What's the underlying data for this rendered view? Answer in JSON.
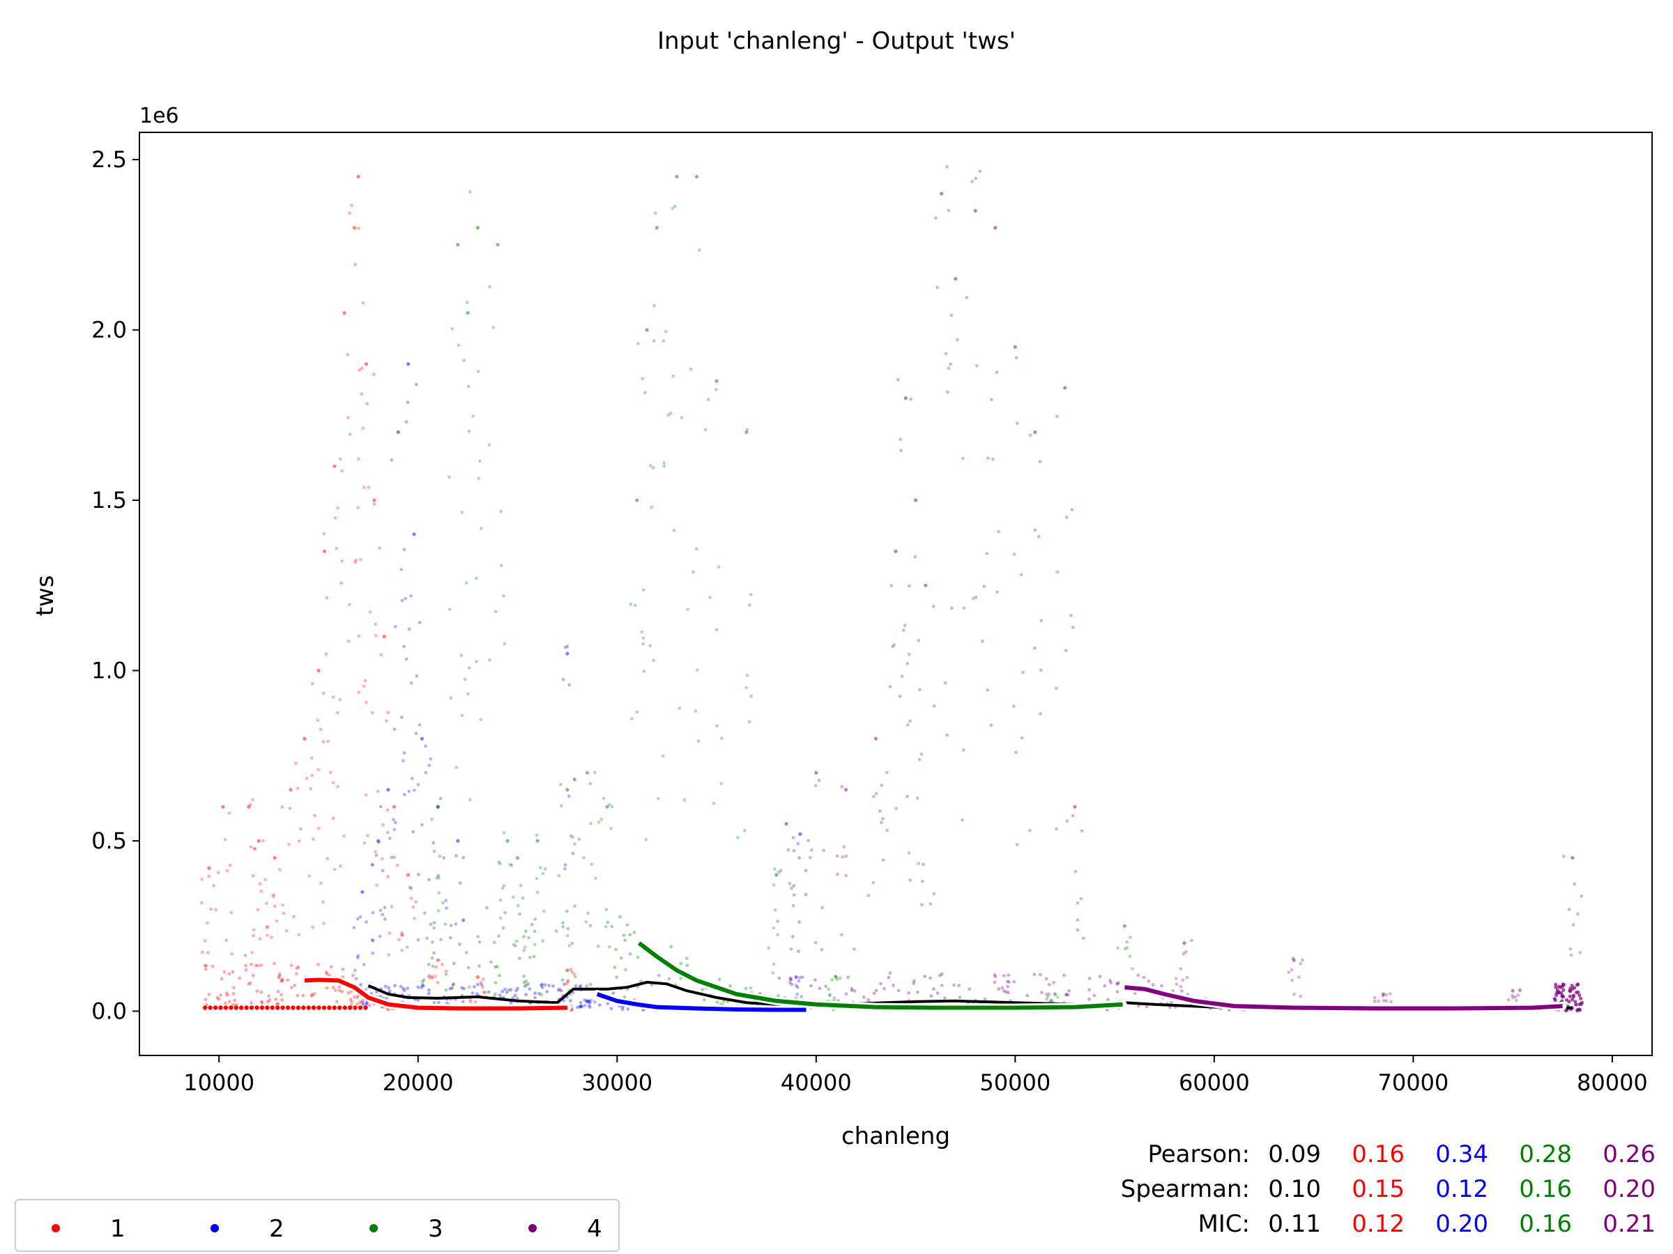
{
  "chart_data": {
    "type": "scatter",
    "title": "Input 'chanleng' - Output 'tws'",
    "xlabel": "chanleng",
    "ylabel": "tws",
    "y_multiplier": "1e6",
    "xlim": [
      6000,
      82000
    ],
    "ylim": [
      -0.13,
      2.58
    ],
    "xticks": [
      10000,
      20000,
      30000,
      40000,
      50000,
      60000,
      70000,
      80000
    ],
    "xtick_labels": [
      "10000",
      "20000",
      "30000",
      "40000",
      "50000",
      "60000",
      "70000",
      "80000"
    ],
    "yticks": [
      0.0,
      0.5,
      1.0,
      1.5,
      2.0,
      2.5
    ],
    "ytick_labels": [
      "0.0",
      "0.5",
      "1.0",
      "1.5",
      "2.0",
      "2.5"
    ],
    "grid": false,
    "legend_position": "bottom-left",
    "series": [
      {
        "name": "1",
        "color": "#ff0000",
        "x_range": [
          9300,
          27800
        ],
        "scatter_samples": [
          [
            9500,
            0.42
          ],
          [
            10200,
            0.6
          ],
          [
            11500,
            0.6
          ],
          [
            12000,
            0.5
          ],
          [
            12800,
            0.45
          ],
          [
            13600,
            0.65
          ],
          [
            14300,
            0.8
          ],
          [
            15000,
            1.0
          ],
          [
            15300,
            1.35
          ],
          [
            15800,
            1.6
          ],
          [
            16300,
            2.05
          ],
          [
            16800,
            2.3
          ],
          [
            17000,
            2.45
          ],
          [
            17400,
            1.9
          ],
          [
            17800,
            1.5
          ],
          [
            18300,
            1.1
          ],
          [
            18800,
            0.6
          ],
          [
            19500,
            0.4
          ],
          [
            21000,
            0.15
          ],
          [
            23000,
            0.1
          ],
          [
            27500,
            0.12
          ]
        ],
        "trend_x": [
          14300,
          15000,
          16000,
          16800,
          17500,
          18500,
          20000,
          22000,
          25000,
          27500
        ],
        "trend_y": [
          0.09,
          0.092,
          0.09,
          0.07,
          0.04,
          0.02,
          0.01,
          0.008,
          0.008,
          0.01
        ]
      },
      {
        "name": "2",
        "color": "#0000ff",
        "x_range": [
          17000,
          39500
        ],
        "scatter_samples": [
          [
            17200,
            0.35
          ],
          [
            18000,
            0.5
          ],
          [
            18500,
            0.65
          ],
          [
            19000,
            1.7
          ],
          [
            19500,
            1.9
          ],
          [
            19800,
            1.4
          ],
          [
            20200,
            0.8
          ],
          [
            21000,
            0.6
          ],
          [
            22000,
            0.5
          ],
          [
            27500,
            1.05
          ],
          [
            28500,
            0.03
          ],
          [
            39000,
            0.1
          ],
          [
            39200,
            0.52
          ]
        ],
        "trend_x": [
          29000,
          30000,
          31000,
          32000,
          34000,
          36000,
          38000,
          39500
        ],
        "trend_y": [
          0.05,
          0.03,
          0.02,
          0.012,
          0.008,
          0.005,
          0.004,
          0.004
        ]
      },
      {
        "name": "3",
        "color": "#008000",
        "x_range": [
          20000,
          55700
        ],
        "scatter_samples": [
          [
            21000,
            0.6
          ],
          [
            22000,
            2.25
          ],
          [
            22500,
            2.05
          ],
          [
            23000,
            2.3
          ],
          [
            24000,
            2.25
          ],
          [
            24500,
            0.5
          ],
          [
            25000,
            0.45
          ],
          [
            26000,
            0.5
          ],
          [
            27500,
            0.65
          ],
          [
            28500,
            0.7
          ],
          [
            29500,
            0.6
          ],
          [
            31000,
            1.5
          ],
          [
            31500,
            2.0
          ],
          [
            32000,
            2.3
          ],
          [
            33000,
            2.45
          ],
          [
            34000,
            2.45
          ],
          [
            35000,
            1.85
          ],
          [
            36500,
            1.7
          ],
          [
            38000,
            0.4
          ],
          [
            41000,
            0.1
          ],
          [
            48000,
            0.03
          ],
          [
            52000,
            0.05
          ],
          [
            55500,
            0.25
          ]
        ],
        "trend_x": [
          31100,
          32000,
          33000,
          34000,
          35000,
          36000,
          38000,
          40000,
          43000,
          46000,
          50000,
          53000,
          55400
        ],
        "trend_y": [
          0.2,
          0.16,
          0.12,
          0.09,
          0.07,
          0.05,
          0.03,
          0.02,
          0.012,
          0.01,
          0.01,
          0.012,
          0.02
        ]
      },
      {
        "name": "4",
        "color": "#800080",
        "x_range": [
          38000,
          78500
        ],
        "scatter_samples": [
          [
            38500,
            0.55
          ],
          [
            40000,
            0.7
          ],
          [
            41500,
            0.65
          ],
          [
            43000,
            0.8
          ],
          [
            44000,
            1.35
          ],
          [
            44500,
            1.8
          ],
          [
            45000,
            1.5
          ],
          [
            45500,
            1.25
          ],
          [
            46300,
            2.4
          ],
          [
            47000,
            2.15
          ],
          [
            48000,
            2.35
          ],
          [
            49000,
            2.3
          ],
          [
            50000,
            1.95
          ],
          [
            51000,
            1.7
          ],
          [
            52500,
            1.83
          ],
          [
            53000,
            0.6
          ],
          [
            58500,
            0.2
          ],
          [
            64000,
            0.15
          ],
          [
            68500,
            0.05
          ],
          [
            75000,
            0.06
          ],
          [
            78000,
            0.45
          ]
        ],
        "trend_x": [
          55500,
          56500,
          57500,
          59000,
          61000,
          64000,
          68000,
          72000,
          76000,
          77500
        ],
        "trend_y": [
          0.07,
          0.065,
          0.05,
          0.03,
          0.015,
          0.01,
          0.008,
          0.008,
          0.01,
          0.015
        ]
      }
    ],
    "overall_trend": {
      "color": "#000000",
      "x": [
        17500,
        18500,
        19500,
        21000,
        23000,
        25000,
        27000,
        27800,
        29500,
        30500,
        31500,
        32500,
        33500,
        35000,
        36500,
        38000,
        41000,
        45000,
        47000,
        50000,
        53000,
        55500,
        57000,
        60000,
        65000,
        70000,
        75000,
        78000
      ],
      "y": [
        0.075,
        0.05,
        0.04,
        0.038,
        0.042,
        0.03,
        0.025,
        0.065,
        0.065,
        0.07,
        0.085,
        0.08,
        0.06,
        0.04,
        0.025,
        0.02,
        0.02,
        0.028,
        0.03,
        0.025,
        0.02,
        0.025,
        0.02,
        0.012,
        0.01,
        0.008,
        0.008,
        0.01
      ]
    },
    "stats": {
      "rows": [
        {
          "label": "Pearson:",
          "values": [
            "0.09",
            "0.16",
            "0.34",
            "0.28",
            "0.26"
          ]
        },
        {
          "label": "Spearman:",
          "values": [
            "0.10",
            "0.15",
            "0.12",
            "0.16",
            "0.20"
          ]
        },
        {
          "label": "MIC:",
          "values": [
            "0.11",
            "0.12",
            "0.20",
            "0.16",
            "0.21"
          ]
        }
      ],
      "colors": [
        "#000000",
        "#ff0000",
        "#0000ff",
        "#008000",
        "#800080"
      ]
    },
    "legend": [
      {
        "label": "1",
        "color": "#ff0000"
      },
      {
        "label": "2",
        "color": "#0000ff"
      },
      {
        "label": "3",
        "color": "#008000"
      },
      {
        "label": "4",
        "color": "#800080"
      }
    ]
  }
}
